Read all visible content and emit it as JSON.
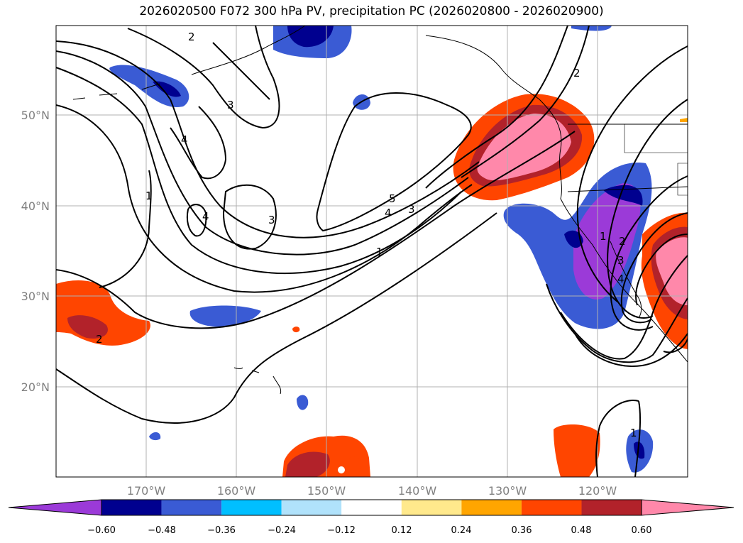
{
  "title": "2026020500 F072 300 hPa PV, precipitation PC (2026020800 - 2026020900)",
  "map": {
    "lat_labels": [
      "50°N",
      "40°N",
      "30°N",
      "20°N"
    ],
    "lon_labels": [
      "170°W",
      "160°W",
      "150°W",
      "140°W",
      "130°W",
      "120°W"
    ],
    "pv_contour_labels": [
      "2",
      "3",
      "4",
      "1",
      "4",
      "3",
      "5",
      "4",
      "3",
      "1",
      "2",
      "2",
      "1",
      "2",
      "3",
      "4",
      "1"
    ]
  },
  "colorbar": {
    "ticks": [
      "−0.60",
      "−0.48",
      "−0.36",
      "−0.24",
      "−0.12",
      "0.12",
      "0.24",
      "0.36",
      "0.48",
      "0.60"
    ],
    "colors": [
      "#9b3ad8",
      "#00008f",
      "#3a5bd4",
      "#00bfff",
      "#b0e2fb",
      "#ffffff",
      "#ffe98c",
      "#ffa500",
      "#ff4500",
      "#b2222a",
      "#ff88aa"
    ]
  }
}
